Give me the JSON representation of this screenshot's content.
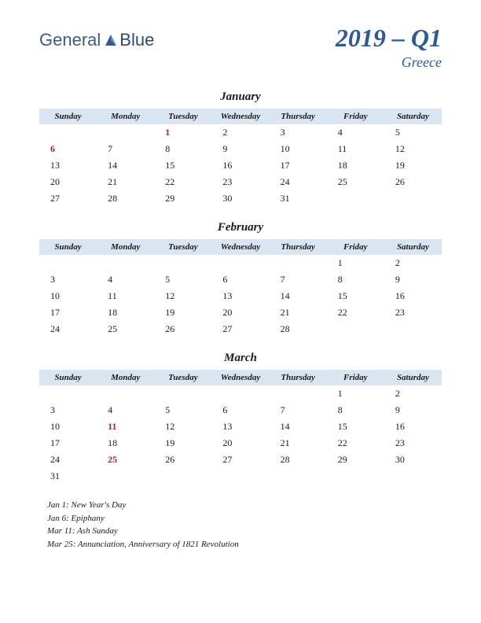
{
  "logo": {
    "text1": "General",
    "text2": "Blue"
  },
  "title": "2019 – Q1",
  "country": "Greece",
  "colors": {
    "header_bg": "#dae5f2",
    "title_color": "#2a5a9a",
    "holiday_color": "#b02020",
    "text_color": "#1a1a1a",
    "logo_color": "#3a5a8a"
  },
  "day_headers": [
    "Sunday",
    "Monday",
    "Tuesday",
    "Wednesday",
    "Thursday",
    "Friday",
    "Saturday"
  ],
  "months": [
    {
      "name": "January",
      "weeks": [
        [
          "",
          "",
          "1",
          "2",
          "3",
          "4",
          "5"
        ],
        [
          "6",
          "7",
          "8",
          "9",
          "10",
          "11",
          "12"
        ],
        [
          "13",
          "14",
          "15",
          "16",
          "17",
          "18",
          "19"
        ],
        [
          "20",
          "21",
          "22",
          "23",
          "24",
          "25",
          "26"
        ],
        [
          "27",
          "28",
          "29",
          "30",
          "31",
          "",
          ""
        ]
      ],
      "holidays": [
        "1",
        "6"
      ]
    },
    {
      "name": "February",
      "weeks": [
        [
          "",
          "",
          "",
          "",
          "",
          "1",
          "2"
        ],
        [
          "3",
          "4",
          "5",
          "6",
          "7",
          "8",
          "9"
        ],
        [
          "10",
          "11",
          "12",
          "13",
          "14",
          "15",
          "16"
        ],
        [
          "17",
          "18",
          "19",
          "20",
          "21",
          "22",
          "23"
        ],
        [
          "24",
          "25",
          "26",
          "27",
          "28",
          "",
          ""
        ]
      ],
      "holidays": []
    },
    {
      "name": "March",
      "weeks": [
        [
          "",
          "",
          "",
          "",
          "",
          "1",
          "2"
        ],
        [
          "3",
          "4",
          "5",
          "6",
          "7",
          "8",
          "9"
        ],
        [
          "10",
          "11",
          "12",
          "13",
          "14",
          "15",
          "16"
        ],
        [
          "17",
          "18",
          "19",
          "20",
          "21",
          "22",
          "23"
        ],
        [
          "24",
          "25",
          "26",
          "27",
          "28",
          "29",
          "30"
        ],
        [
          "31",
          "",
          "",
          "",
          "",
          "",
          ""
        ]
      ],
      "holidays": [
        "11",
        "25"
      ]
    }
  ],
  "holiday_list": [
    "Jan 1: New Year's Day",
    "Jan 6: Epiphany",
    "Mar 11: Ash Sunday",
    "Mar 25: Annunciation, Anniversary of 1821 Revolution"
  ]
}
